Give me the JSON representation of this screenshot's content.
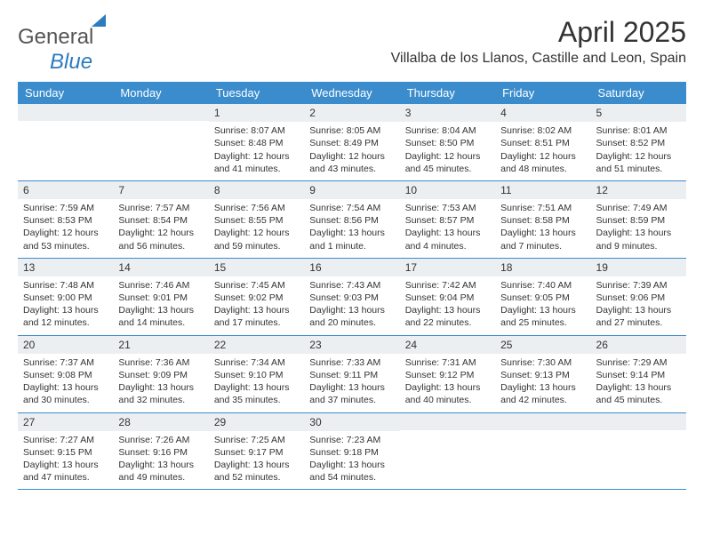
{
  "logo": {
    "part1": "General",
    "part2": "Blue"
  },
  "title": "April 2025",
  "location": "Villalba de los Llanos, Castille and Leon, Spain",
  "header_bg": "#3b8ccc",
  "weekdays": [
    "Sunday",
    "Monday",
    "Tuesday",
    "Wednesday",
    "Thursday",
    "Friday",
    "Saturday"
  ],
  "weeks": [
    [
      {
        "n": "",
        "sr": "",
        "ss": "",
        "dl": ""
      },
      {
        "n": "",
        "sr": "",
        "ss": "",
        "dl": ""
      },
      {
        "n": "1",
        "sr": "Sunrise: 8:07 AM",
        "ss": "Sunset: 8:48 PM",
        "dl": "Daylight: 12 hours and 41 minutes."
      },
      {
        "n": "2",
        "sr": "Sunrise: 8:05 AM",
        "ss": "Sunset: 8:49 PM",
        "dl": "Daylight: 12 hours and 43 minutes."
      },
      {
        "n": "3",
        "sr": "Sunrise: 8:04 AM",
        "ss": "Sunset: 8:50 PM",
        "dl": "Daylight: 12 hours and 45 minutes."
      },
      {
        "n": "4",
        "sr": "Sunrise: 8:02 AM",
        "ss": "Sunset: 8:51 PM",
        "dl": "Daylight: 12 hours and 48 minutes."
      },
      {
        "n": "5",
        "sr": "Sunrise: 8:01 AM",
        "ss": "Sunset: 8:52 PM",
        "dl": "Daylight: 12 hours and 51 minutes."
      }
    ],
    [
      {
        "n": "6",
        "sr": "Sunrise: 7:59 AM",
        "ss": "Sunset: 8:53 PM",
        "dl": "Daylight: 12 hours and 53 minutes."
      },
      {
        "n": "7",
        "sr": "Sunrise: 7:57 AM",
        "ss": "Sunset: 8:54 PM",
        "dl": "Daylight: 12 hours and 56 minutes."
      },
      {
        "n": "8",
        "sr": "Sunrise: 7:56 AM",
        "ss": "Sunset: 8:55 PM",
        "dl": "Daylight: 12 hours and 59 minutes."
      },
      {
        "n": "9",
        "sr": "Sunrise: 7:54 AM",
        "ss": "Sunset: 8:56 PM",
        "dl": "Daylight: 13 hours and 1 minute."
      },
      {
        "n": "10",
        "sr": "Sunrise: 7:53 AM",
        "ss": "Sunset: 8:57 PM",
        "dl": "Daylight: 13 hours and 4 minutes."
      },
      {
        "n": "11",
        "sr": "Sunrise: 7:51 AM",
        "ss": "Sunset: 8:58 PM",
        "dl": "Daylight: 13 hours and 7 minutes."
      },
      {
        "n": "12",
        "sr": "Sunrise: 7:49 AM",
        "ss": "Sunset: 8:59 PM",
        "dl": "Daylight: 13 hours and 9 minutes."
      }
    ],
    [
      {
        "n": "13",
        "sr": "Sunrise: 7:48 AM",
        "ss": "Sunset: 9:00 PM",
        "dl": "Daylight: 13 hours and 12 minutes."
      },
      {
        "n": "14",
        "sr": "Sunrise: 7:46 AM",
        "ss": "Sunset: 9:01 PM",
        "dl": "Daylight: 13 hours and 14 minutes."
      },
      {
        "n": "15",
        "sr": "Sunrise: 7:45 AM",
        "ss": "Sunset: 9:02 PM",
        "dl": "Daylight: 13 hours and 17 minutes."
      },
      {
        "n": "16",
        "sr": "Sunrise: 7:43 AM",
        "ss": "Sunset: 9:03 PM",
        "dl": "Daylight: 13 hours and 20 minutes."
      },
      {
        "n": "17",
        "sr": "Sunrise: 7:42 AM",
        "ss": "Sunset: 9:04 PM",
        "dl": "Daylight: 13 hours and 22 minutes."
      },
      {
        "n": "18",
        "sr": "Sunrise: 7:40 AM",
        "ss": "Sunset: 9:05 PM",
        "dl": "Daylight: 13 hours and 25 minutes."
      },
      {
        "n": "19",
        "sr": "Sunrise: 7:39 AM",
        "ss": "Sunset: 9:06 PM",
        "dl": "Daylight: 13 hours and 27 minutes."
      }
    ],
    [
      {
        "n": "20",
        "sr": "Sunrise: 7:37 AM",
        "ss": "Sunset: 9:08 PM",
        "dl": "Daylight: 13 hours and 30 minutes."
      },
      {
        "n": "21",
        "sr": "Sunrise: 7:36 AM",
        "ss": "Sunset: 9:09 PM",
        "dl": "Daylight: 13 hours and 32 minutes."
      },
      {
        "n": "22",
        "sr": "Sunrise: 7:34 AM",
        "ss": "Sunset: 9:10 PM",
        "dl": "Daylight: 13 hours and 35 minutes."
      },
      {
        "n": "23",
        "sr": "Sunrise: 7:33 AM",
        "ss": "Sunset: 9:11 PM",
        "dl": "Daylight: 13 hours and 37 minutes."
      },
      {
        "n": "24",
        "sr": "Sunrise: 7:31 AM",
        "ss": "Sunset: 9:12 PM",
        "dl": "Daylight: 13 hours and 40 minutes."
      },
      {
        "n": "25",
        "sr": "Sunrise: 7:30 AM",
        "ss": "Sunset: 9:13 PM",
        "dl": "Daylight: 13 hours and 42 minutes."
      },
      {
        "n": "26",
        "sr": "Sunrise: 7:29 AM",
        "ss": "Sunset: 9:14 PM",
        "dl": "Daylight: 13 hours and 45 minutes."
      }
    ],
    [
      {
        "n": "27",
        "sr": "Sunrise: 7:27 AM",
        "ss": "Sunset: 9:15 PM",
        "dl": "Daylight: 13 hours and 47 minutes."
      },
      {
        "n": "28",
        "sr": "Sunrise: 7:26 AM",
        "ss": "Sunset: 9:16 PM",
        "dl": "Daylight: 13 hours and 49 minutes."
      },
      {
        "n": "29",
        "sr": "Sunrise: 7:25 AM",
        "ss": "Sunset: 9:17 PM",
        "dl": "Daylight: 13 hours and 52 minutes."
      },
      {
        "n": "30",
        "sr": "Sunrise: 7:23 AM",
        "ss": "Sunset: 9:18 PM",
        "dl": "Daylight: 13 hours and 54 minutes."
      },
      {
        "n": "",
        "sr": "",
        "ss": "",
        "dl": ""
      },
      {
        "n": "",
        "sr": "",
        "ss": "",
        "dl": ""
      },
      {
        "n": "",
        "sr": "",
        "ss": "",
        "dl": ""
      }
    ]
  ]
}
